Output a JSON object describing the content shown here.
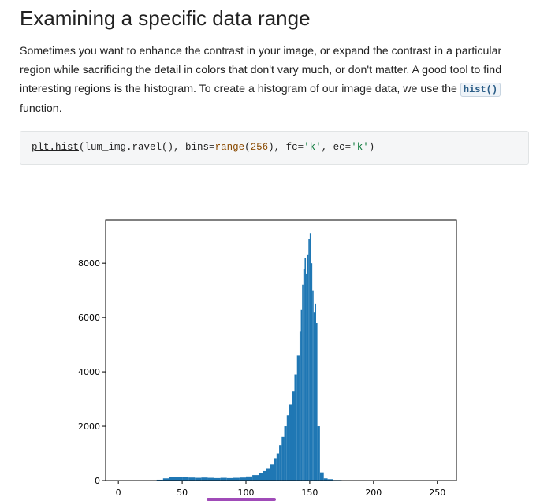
{
  "heading": "Examining a specific data range",
  "paragraph": {
    "text_before": "Sometimes you want to enhance the contrast in your image, or expand the contrast in a particular region while sacrificing the detail in colors that don't vary much, or don't matter. A good tool to find interesting regions is the histogram. To create a histogram of our image data, we use the ",
    "code": "hist()",
    "text_after": " function."
  },
  "code_block": {
    "tokens": {
      "module": "plt.hist",
      "t1": "(lum_img.ravel(), bins",
      "eq1": "=",
      "range_fn": "range",
      "p1": "(",
      "num": "256",
      "t2": "), fc",
      "eq2": "=",
      "s1": "'k'",
      "t3": ", ec",
      "eq3": "=",
      "s2": "'k'",
      "t4": ")"
    }
  },
  "chart_data": {
    "type": "bar",
    "title": "",
    "xlabel": "",
    "ylabel": "",
    "xlim": [
      -10,
      265
    ],
    "ylim": [
      0,
      9600
    ],
    "xticks": [
      0,
      50,
      100,
      150,
      200,
      250
    ],
    "yticks": [
      0,
      2000,
      4000,
      6000,
      8000
    ],
    "bar_color": "#1f77b4",
    "bins": [
      {
        "x": 30,
        "y": 30
      },
      {
        "x": 35,
        "y": 80
      },
      {
        "x": 40,
        "y": 120
      },
      {
        "x": 45,
        "y": 140
      },
      {
        "x": 50,
        "y": 130
      },
      {
        "x": 55,
        "y": 110
      },
      {
        "x": 60,
        "y": 100
      },
      {
        "x": 65,
        "y": 110
      },
      {
        "x": 70,
        "y": 100
      },
      {
        "x": 75,
        "y": 90
      },
      {
        "x": 80,
        "y": 100
      },
      {
        "x": 85,
        "y": 90
      },
      {
        "x": 90,
        "y": 100
      },
      {
        "x": 95,
        "y": 110
      },
      {
        "x": 100,
        "y": 150
      },
      {
        "x": 105,
        "y": 200
      },
      {
        "x": 110,
        "y": 280
      },
      {
        "x": 113,
        "y": 350
      },
      {
        "x": 116,
        "y": 450
      },
      {
        "x": 119,
        "y": 600
      },
      {
        "x": 122,
        "y": 800
      },
      {
        "x": 124,
        "y": 1000
      },
      {
        "x": 126,
        "y": 1300
      },
      {
        "x": 128,
        "y": 1600
      },
      {
        "x": 130,
        "y": 2000
      },
      {
        "x": 132,
        "y": 2400
      },
      {
        "x": 134,
        "y": 2800
      },
      {
        "x": 136,
        "y": 3300
      },
      {
        "x": 138,
        "y": 3900
      },
      {
        "x": 140,
        "y": 4600
      },
      {
        "x": 142,
        "y": 5500
      },
      {
        "x": 143,
        "y": 6300
      },
      {
        "x": 144,
        "y": 7200
      },
      {
        "x": 145,
        "y": 7800
      },
      {
        "x": 146,
        "y": 8200
      },
      {
        "x": 147,
        "y": 7600
      },
      {
        "x": 148,
        "y": 8300
      },
      {
        "x": 149,
        "y": 8900
      },
      {
        "x": 150,
        "y": 9100
      },
      {
        "x": 151,
        "y": 8000
      },
      {
        "x": 152,
        "y": 7000
      },
      {
        "x": 153,
        "y": 6200
      },
      {
        "x": 154,
        "y": 6500
      },
      {
        "x": 155,
        "y": 5800
      },
      {
        "x": 156,
        "y": 2000
      },
      {
        "x": 158,
        "y": 300
      },
      {
        "x": 161,
        "y": 80
      },
      {
        "x": 164,
        "y": 50
      },
      {
        "x": 168,
        "y": 20
      },
      {
        "x": 175,
        "y": 10
      }
    ]
  }
}
